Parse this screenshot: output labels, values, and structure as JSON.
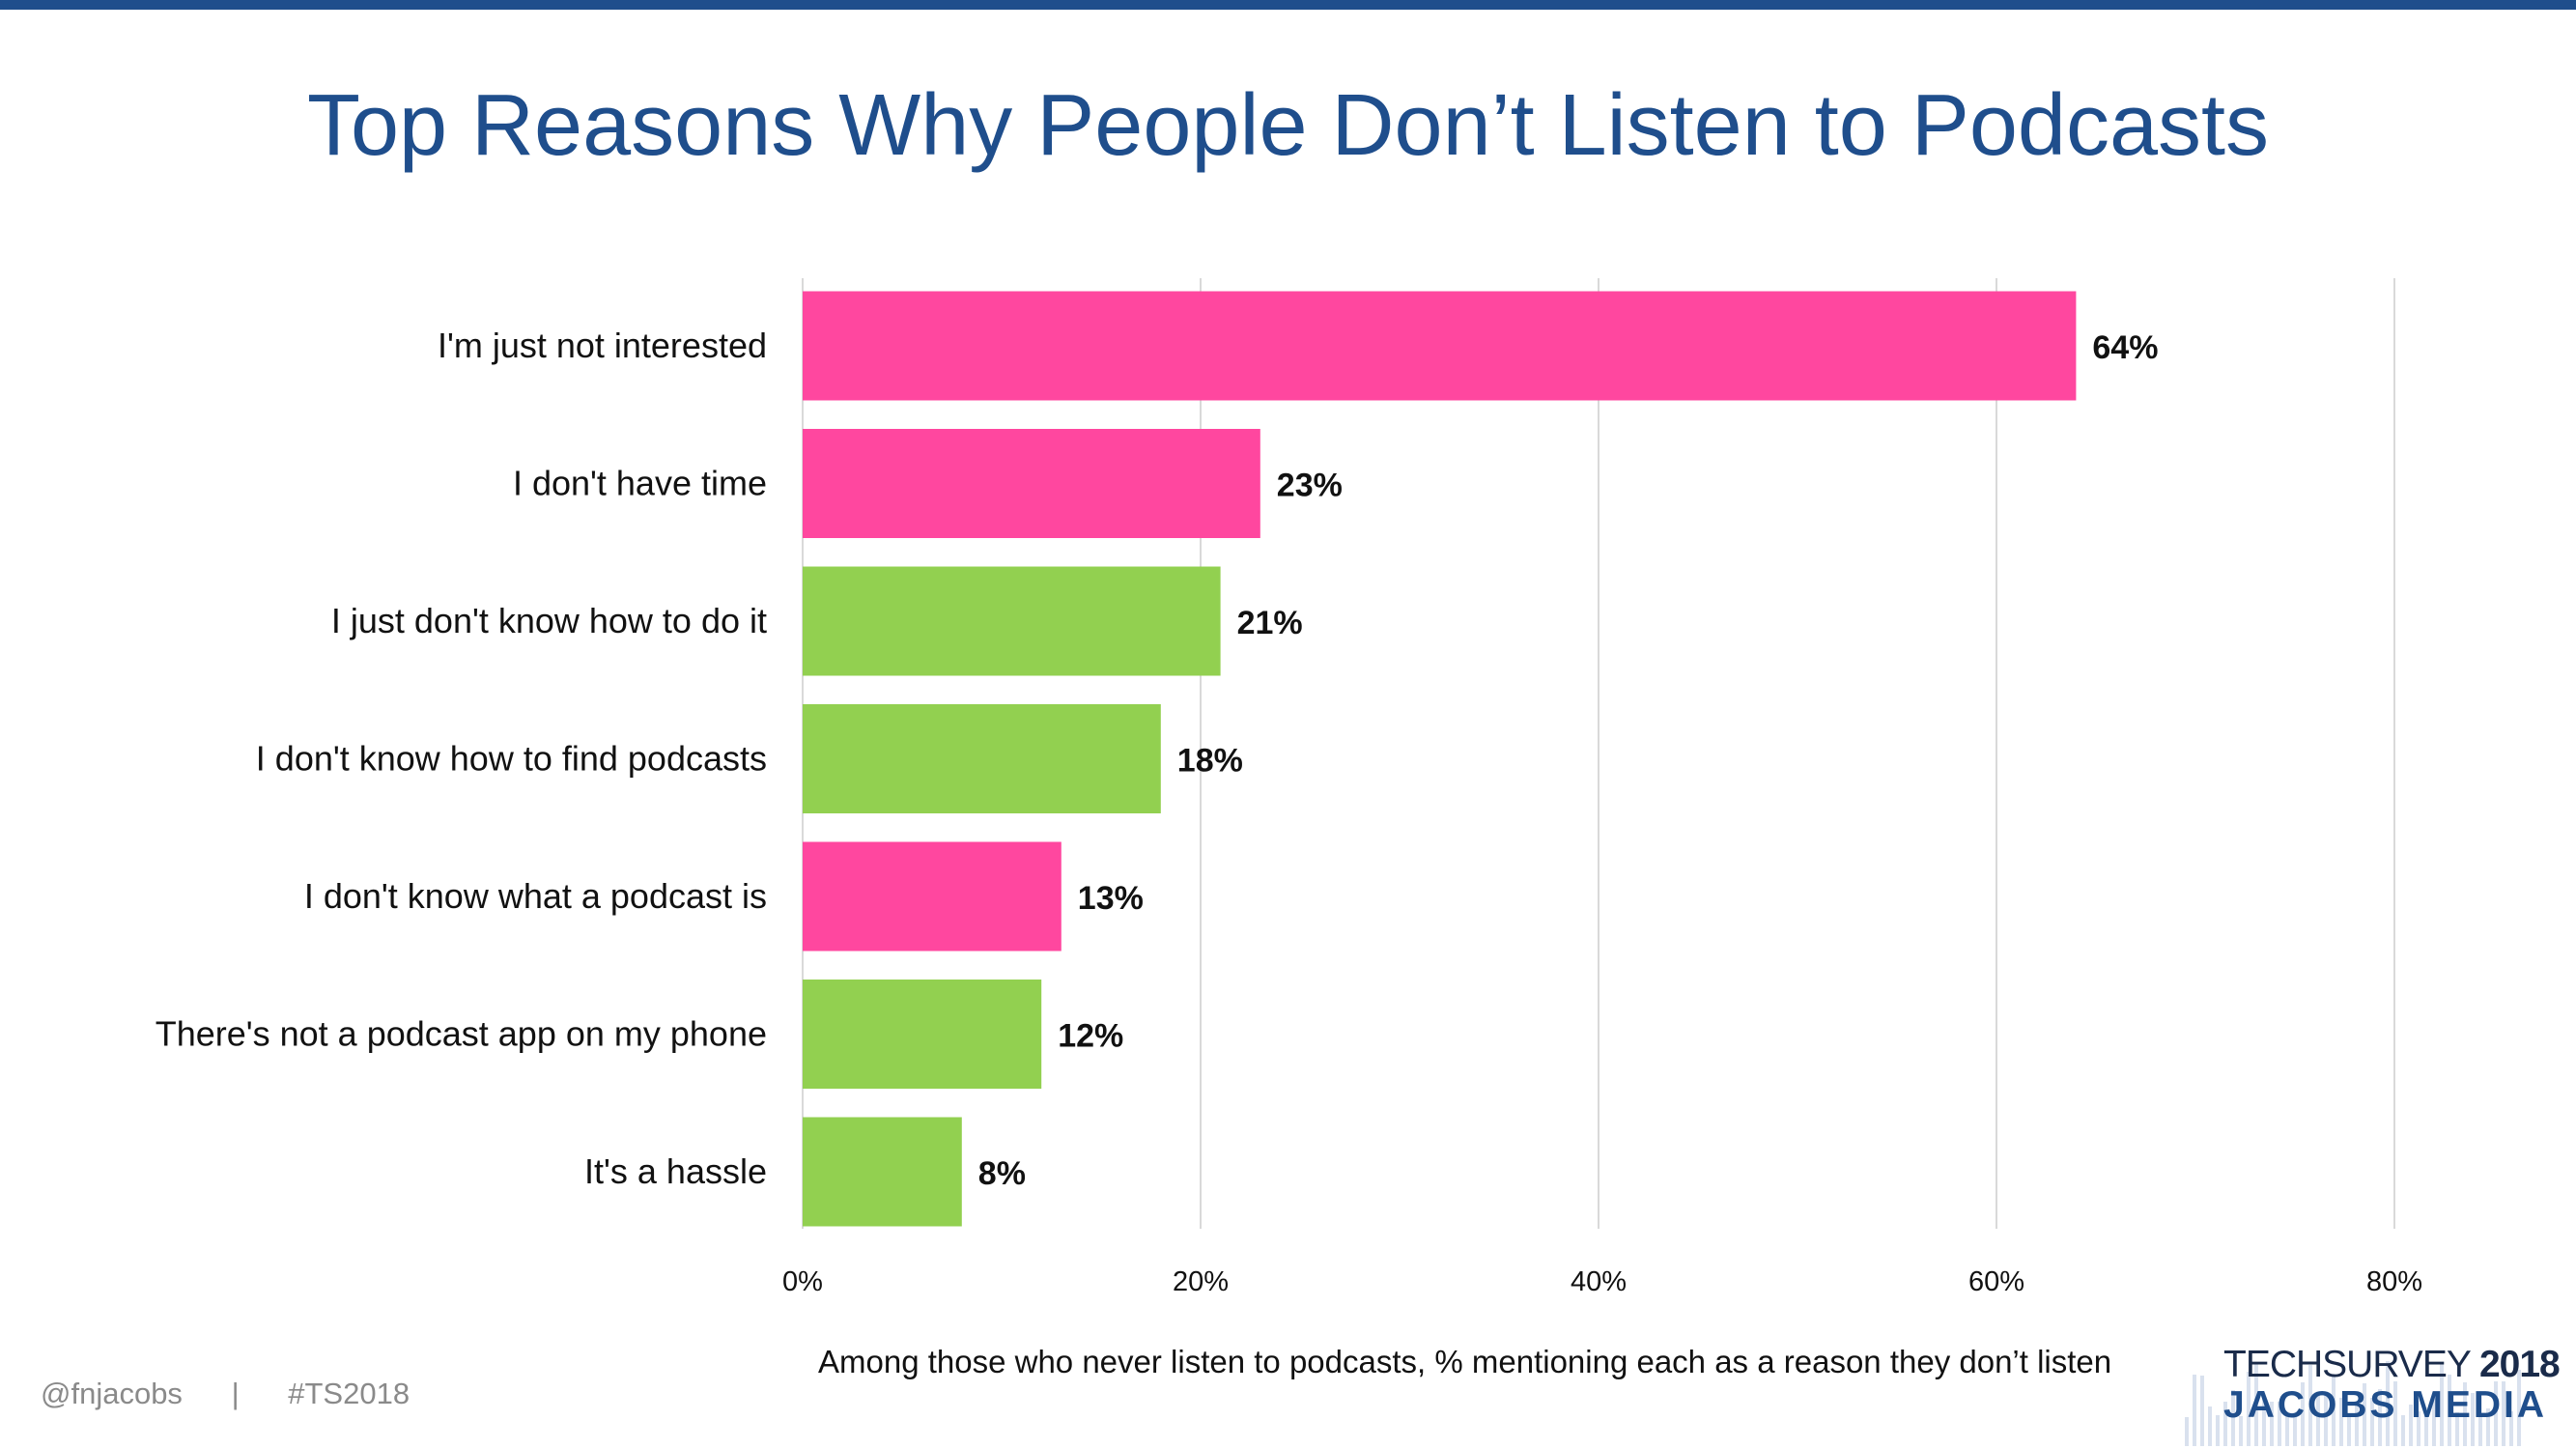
{
  "title": "Top Reasons Why People Don’t Listen to Podcasts",
  "chart_data": {
    "type": "bar",
    "orientation": "horizontal",
    "categories": [
      "I'm just not interested",
      "I don't have time",
      "I just don't know how to do it",
      "I don't know how to find podcasts",
      "I don't know what a podcast is",
      "There's not a podcast app on my phone",
      "It's a hassle"
    ],
    "values": [
      64,
      23,
      21,
      18,
      13,
      12,
      8
    ],
    "value_labels": [
      "64%",
      "23%",
      "21%",
      "18%",
      "13%",
      "12%",
      "8%"
    ],
    "bar_colors": [
      "#ff479f",
      "#ff479f",
      "#92d050",
      "#92d050",
      "#ff479f",
      "#92d050",
      "#92d050"
    ],
    "xlim": [
      0,
      80
    ],
    "x_ticks": [
      0,
      20,
      40,
      60,
      80
    ],
    "x_tick_labels": [
      "0%",
      "20%",
      "40%",
      "60%",
      "80%"
    ],
    "grid": true,
    "xlabel": "Among those who never listen to podcasts, % mentioning each as a reason they don’t listen",
    "ylabel": ""
  },
  "footer": {
    "handle": "@fnjacobs",
    "separator": "|",
    "hashtag": "#TS2018"
  },
  "brand": {
    "name": "TECHSURVEY",
    "year": "2018",
    "company": "JACOBS MEDIA"
  },
  "colors": {
    "title": "#1f4e8c",
    "grid": "#d9d9d9"
  }
}
